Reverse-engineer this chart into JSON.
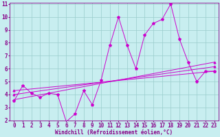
{
  "xlabel": "Windchill (Refroidissement éolien,°C)",
  "bg_color": "#c8eef0",
  "line_color": "#cc00cc",
  "grid_color": "#99cccc",
  "x_min": 0,
  "x_max": 23,
  "y_min": 2,
  "y_max": 11,
  "zigzag_x": [
    0,
    1,
    2,
    3,
    4,
    5,
    6,
    7,
    8,
    9,
    10,
    11,
    12,
    13,
    14,
    15,
    16,
    17,
    18,
    19,
    20,
    21,
    22,
    23
  ],
  "zigzag_y": [
    3.5,
    4.7,
    4.1,
    3.8,
    4.1,
    4.0,
    1.9,
    2.5,
    4.3,
    3.2,
    5.1,
    7.8,
    10.0,
    7.8,
    6.0,
    8.6,
    9.5,
    9.8,
    11.0,
    8.3,
    6.5,
    5.0,
    5.8,
    5.8
  ],
  "trend1_x": [
    0,
    23
  ],
  "trend1_y": [
    3.6,
    6.5
  ],
  "trend2_x": [
    0,
    23
  ],
  "trend2_y": [
    4.0,
    6.15
  ],
  "trend3_x": [
    0,
    23
  ],
  "trend3_y": [
    4.3,
    5.8
  ],
  "tick_color": "#880088",
  "xlabel_fontsize": 5.5,
  "tick_fontsize": 5.5
}
